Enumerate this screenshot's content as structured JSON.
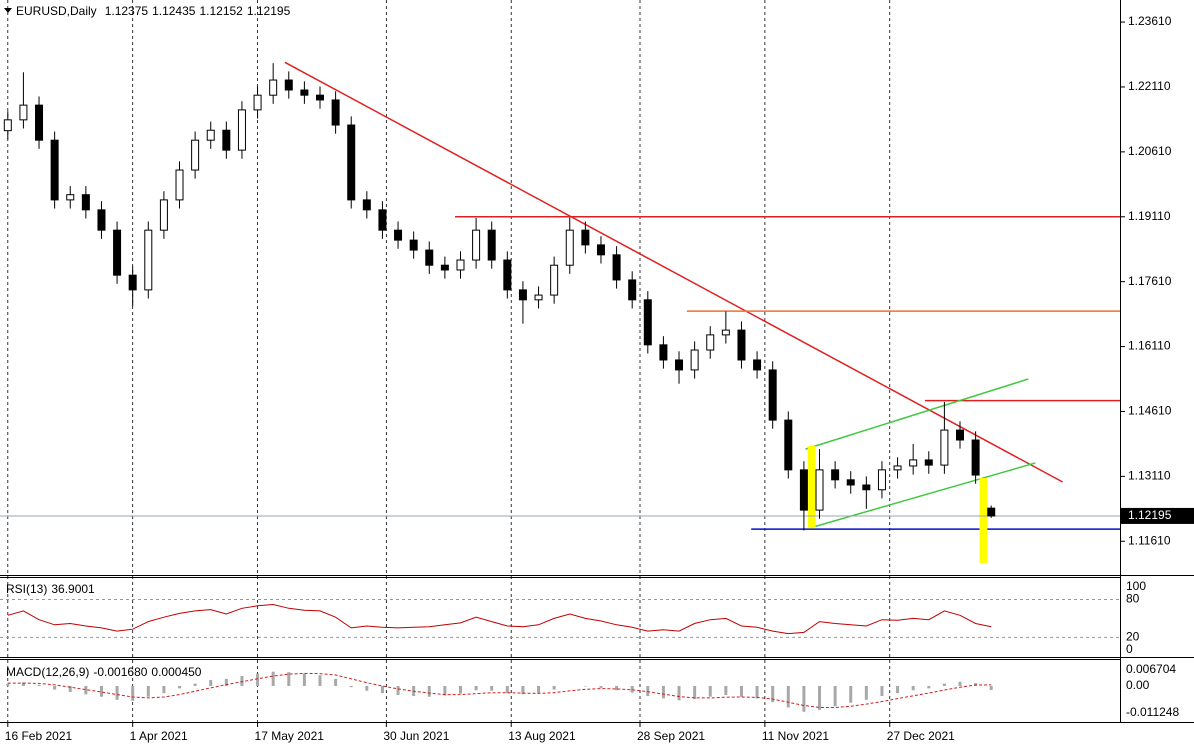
{
  "chart_data": [
    {
      "type": "candlestick",
      "title": "EURUSD,Daily",
      "x": [
        0,
        4,
        8,
        12,
        16,
        20,
        24,
        28,
        32,
        36,
        40,
        44,
        48,
        52,
        56,
        60,
        64,
        68,
        72,
        76,
        80,
        84,
        88,
        92,
        96,
        100,
        104,
        108,
        112,
        116,
        120,
        124,
        128,
        132,
        136,
        140,
        144,
        148,
        152,
        156,
        160,
        164,
        168,
        172,
        176,
        180,
        184,
        188,
        192,
        196,
        200,
        204,
        208,
        212,
        216,
        220,
        224,
        228,
        232,
        236,
        240,
        244,
        248,
        252
      ],
      "open": [
        1.211,
        1.2135,
        1.2169,
        1.2088,
        1.195,
        1.1962,
        1.1927,
        1.188,
        1.1776,
        1.1742,
        1.188,
        1.195,
        1.2019,
        1.2088,
        1.2111,
        1.2065,
        1.2158,
        1.2192,
        1.2227,
        1.2204,
        1.2192,
        1.2181,
        1.2123,
        1.195,
        1.1927,
        1.188,
        1.1857,
        1.1834,
        1.1799,
        1.1788,
        1.1811,
        1.188,
        1.1811,
        1.1742,
        1.1719,
        1.173,
        1.1799,
        1.188,
        1.1846,
        1.1823,
        1.1765,
        1.1719,
        1.1615,
        1.158,
        1.1557,
        1.1603,
        1.1638,
        1.1649,
        1.158,
        1.1557,
        1.1441,
        1.1326,
        1.1233,
        1.1326,
        1.1303,
        1.1291,
        1.128,
        1.1326,
        1.1335,
        1.1349,
        1.1337,
        1.1418,
        1.1395,
        1.12375
      ],
      "high": [
        1.2155,
        1.2245,
        1.2189,
        1.2108,
        1.1982,
        1.1982,
        1.1947,
        1.19,
        1.1796,
        1.19,
        1.197,
        1.2039,
        1.2108,
        1.2131,
        1.2131,
        1.2178,
        1.2212,
        1.2266,
        1.2247,
        1.2224,
        1.2212,
        1.2201,
        1.2143,
        1.197,
        1.1947,
        1.19,
        1.1877,
        1.1854,
        1.1819,
        1.1831,
        1.1908,
        1.19,
        1.1831,
        1.1762,
        1.175,
        1.1819,
        1.1909,
        1.19,
        1.1866,
        1.1843,
        1.1785,
        1.1739,
        1.1635,
        1.16,
        1.1623,
        1.1658,
        1.1692,
        1.1669,
        1.16,
        1.1577,
        1.1461,
        1.1346,
        1.1374,
        1.1346,
        1.1323,
        1.1311,
        1.1346,
        1.1355,
        1.1386,
        1.1369,
        1.1483,
        1.1438,
        1.1415,
        1.12435
      ],
      "low": [
        1.209,
        1.2115,
        1.2068,
        1.193,
        1.193,
        1.1907,
        1.186,
        1.1756,
        1.1704,
        1.1722,
        1.186,
        1.193,
        1.1999,
        1.2068,
        1.2045,
        1.2045,
        1.2138,
        1.2172,
        1.2184,
        1.2172,
        1.2161,
        1.2103,
        1.193,
        1.1907,
        1.186,
        1.1837,
        1.1814,
        1.1779,
        1.1768,
        1.1768,
        1.1791,
        1.1791,
        1.1722,
        1.1664,
        1.1699,
        1.171,
        1.1779,
        1.1826,
        1.1803,
        1.1745,
        1.1699,
        1.1595,
        1.156,
        1.1525,
        1.1537,
        1.1583,
        1.1618,
        1.156,
        1.1537,
        1.1421,
        1.1306,
        1.1186,
        1.1213,
        1.1283,
        1.1271,
        1.1236,
        1.126,
        1.1306,
        1.1315,
        1.1317,
        1.1317,
        1.1375,
        1.1294,
        1.12152
      ],
      "close": [
        1.2135,
        1.2169,
        1.2088,
        1.195,
        1.1962,
        1.1927,
        1.188,
        1.1776,
        1.1742,
        1.188,
        1.195,
        1.2019,
        1.2088,
        1.2111,
        1.2065,
        1.2158,
        1.2192,
        1.2227,
        1.2204,
        1.2192,
        1.2181,
        1.2123,
        1.195,
        1.1927,
        1.188,
        1.1857,
        1.1834,
        1.1799,
        1.1788,
        1.1811,
        1.188,
        1.1811,
        1.1742,
        1.1719,
        1.173,
        1.1799,
        1.188,
        1.1846,
        1.1823,
        1.1765,
        1.1719,
        1.1615,
        1.158,
        1.1557,
        1.1603,
        1.1638,
        1.1649,
        1.158,
        1.1557,
        1.1441,
        1.1326,
        1.1233,
        1.1326,
        1.1303,
        1.1291,
        1.128,
        1.1326,
        1.1335,
        1.1349,
        1.1337,
        1.1418,
        1.1395,
        1.1314,
        1.12195
      ],
      "up_color": "#ffffff",
      "down_color": "#000000",
      "outline_color": "#000000",
      "xlim": [
        -2,
        285
      ],
      "ylim": [
        1.1083,
        1.2412
      ],
      "yticks": [
        {
          "value": 1.2361,
          "label": "1.23610"
        },
        {
          "value": 1.2211,
          "label": "1.22110"
        },
        {
          "value": 1.2061,
          "label": "1.20610"
        },
        {
          "value": 1.1911,
          "label": "1.19110"
        },
        {
          "value": 1.1761,
          "label": "1.17610"
        },
        {
          "value": 1.1611,
          "label": "1.16110"
        },
        {
          "value": 1.1461,
          "label": "1.14610"
        },
        {
          "value": 1.1311,
          "label": "1.13110"
        },
        {
          "value": 1.1161,
          "label": "1.11610"
        }
      ],
      "xticks": [
        {
          "value": 0,
          "label": "16 Feb 2021"
        },
        {
          "value": 32,
          "label": "1 Apr 2021"
        },
        {
          "value": 64,
          "label": "17 May 2021"
        },
        {
          "value": 97,
          "label": "30 Jun 2021"
        },
        {
          "value": 129,
          "label": "13 Aug 2021"
        },
        {
          "value": 162,
          "label": "28 Sep 2021"
        },
        {
          "value": 194,
          "label": "11 Nov 2021"
        },
        {
          "value": 226,
          "label": "27 Dec 2021"
        }
      ],
      "grid": true,
      "current_price_color": "#9aa7b0",
      "objects": [
        {
          "kind": "trendline",
          "color": "#e02020",
          "x": [
            71,
            270.3
          ],
          "y": [
            1.2268,
            1.1298
          ]
        },
        {
          "kind": "hline",
          "color": "#e02020",
          "x0": 114.6,
          "y": 1.1911
        },
        {
          "kind": "hline",
          "color": "#f07030",
          "x0": 174,
          "y": 1.1693
        },
        {
          "kind": "hline",
          "color": "#e02020",
          "x0": 235,
          "y": 1.1486
        },
        {
          "kind": "hline",
          "color": "#0010c8",
          "x0": 190.5,
          "y": 1.1189
        },
        {
          "kind": "trendline",
          "color": "#40c840",
          "x": [
            204.4,
            261.5
          ],
          "y": [
            1.1374,
            1.1536
          ]
        },
        {
          "kind": "trendline",
          "color": "#40c840",
          "x": [
            206.4,
            263.3
          ],
          "y": [
            1.1194,
            1.1342
          ]
        },
        {
          "kind": "rect",
          "color": "#ffff00",
          "x": [
            205,
            207
          ],
          "y": [
            1.1381,
            1.1191
          ]
        },
        {
          "kind": "rect",
          "color": "#ffff00",
          "x": [
            249,
            251
          ],
          "y": [
            1.1307,
            1.1111
          ]
        }
      ]
    },
    {
      "type": "line",
      "name": "RSI(13)",
      "color": "#c00000",
      "values": [
        55,
        62,
        48,
        40,
        42,
        38,
        35,
        30,
        33,
        45,
        52,
        58,
        62,
        64,
        57,
        66,
        70,
        72,
        66,
        63,
        62,
        52,
        35,
        38,
        36,
        35,
        36,
        37,
        40,
        43,
        52,
        45,
        38,
        37,
        40,
        50,
        57,
        50,
        46,
        40,
        36,
        30,
        32,
        30,
        42,
        48,
        50,
        38,
        36,
        30,
        26,
        28,
        45,
        42,
        40,
        38,
        48,
        47,
        50,
        48,
        62,
        55,
        42,
        36.9001
      ],
      "ylim": [
        -11,
        114
      ],
      "yticks": [
        100,
        80,
        20,
        0
      ],
      "levels": [
        80,
        20
      ]
    },
    {
      "type": "macd",
      "name": "MACD(12,26,9)",
      "histogram": {
        "color": "#a8a8a8",
        "values": [
          0.001,
          0.0015,
          0.0005,
          -0.0015,
          -0.0025,
          -0.0035,
          -0.0045,
          -0.0058,
          -0.0062,
          -0.0045,
          -0.003,
          -0.001,
          0.001,
          0.0025,
          0.003,
          0.0042,
          0.0052,
          0.006,
          0.0058,
          0.0052,
          0.0045,
          0.003,
          -0.0005,
          -0.002,
          -0.003,
          -0.0038,
          -0.0042,
          -0.0045,
          -0.004,
          -0.0032,
          -0.0018,
          -0.002,
          -0.003,
          -0.0035,
          -0.003,
          -0.0015,
          0.0,
          -0.0002,
          -0.0008,
          -0.0018,
          -0.0028,
          -0.0042,
          -0.0052,
          -0.006,
          -0.0055,
          -0.0045,
          -0.0038,
          -0.0045,
          -0.0052,
          -0.0068,
          -0.009,
          -0.0108,
          -0.01,
          -0.0085,
          -0.007,
          -0.0058,
          -0.0042,
          -0.003,
          -0.0018,
          -0.001,
          0.001,
          0.0018,
          0.0012,
          -0.00168
        ]
      },
      "signal": {
        "color": "#d02020",
        "values": [
          0.0012,
          0.0012,
          0.0011,
          0.0005,
          -0.0005,
          -0.0015,
          -0.0025,
          -0.0036,
          -0.0046,
          -0.005,
          -0.0046,
          -0.0036,
          -0.0022,
          -0.0008,
          0.0006,
          0.0018,
          0.003,
          0.0042,
          0.005,
          0.0053,
          0.0052,
          0.0046,
          0.003,
          0.0014,
          0.0,
          -0.0012,
          -0.0022,
          -0.003,
          -0.0036,
          -0.0036,
          -0.0032,
          -0.0028,
          -0.0028,
          -0.003,
          -0.0031,
          -0.0028,
          -0.002,
          -0.0014,
          -0.0011,
          -0.0012,
          -0.0016,
          -0.0024,
          -0.0034,
          -0.0044,
          -0.005,
          -0.005,
          -0.0047,
          -0.0046,
          -0.0048,
          -0.0055,
          -0.0068,
          -0.0082,
          -0.009,
          -0.009,
          -0.0085,
          -0.0076,
          -0.0065,
          -0.0053,
          -0.0041,
          -0.003,
          -0.0017,
          -0.0005,
          0.0004,
          0.00045
        ]
      },
      "legend_values": [
        {
          "value": -0.00168,
          "label": "-0.001680"
        },
        {
          "value": 0.00045,
          "label": "0.000450"
        }
      ],
      "ylim": [
        -0.0151,
        0.0109
      ],
      "yticks": [
        0.006704,
        {
          "value": 0,
          "label": "0.00"
        },
        -0.011248
      ]
    }
  ]
}
